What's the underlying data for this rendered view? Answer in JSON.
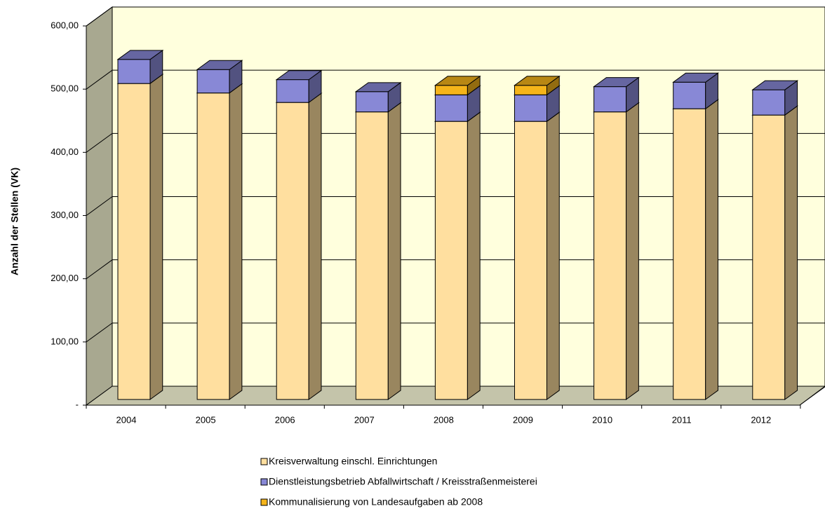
{
  "chart_data": {
    "type": "bar3d_stacked",
    "y_label": "Anzahl der Stellen (VK)",
    "categories": [
      "2004",
      "2005",
      "2006",
      "2007",
      "2008",
      "2009",
      "2010",
      "2011",
      "2012"
    ],
    "series": [
      {
        "name": "Kreisverwaltung einschl. Einrichtungen",
        "color": "#FFDF9F",
        "values": [
          500,
          485,
          470,
          455,
          440,
          440,
          455,
          460,
          450
        ]
      },
      {
        "name": "Dienstleistungsbetrieb Abfallwirtschaft / Kreisstraßenmeisterei",
        "color": "#8888D6",
        "values": [
          38,
          37,
          36,
          32,
          42,
          42,
          40,
          42,
          40
        ]
      },
      {
        "name": "Kommunalisierung von Landesaufgaben ab 2008",
        "color": "#F5B41A",
        "values": [
          null,
          null,
          null,
          null,
          15,
          15,
          null,
          null,
          null
        ]
      }
    ],
    "ylim": [
      0,
      600
    ],
    "yticks": [
      {
        "value": 0,
        "label": "-"
      },
      {
        "value": 100,
        "label": "100,00"
      },
      {
        "value": 200,
        "label": "200,00"
      },
      {
        "value": 300,
        "label": "300,00"
      },
      {
        "value": 400,
        "label": "400,00"
      },
      {
        "value": 500,
        "label": "500,00"
      },
      {
        "value": 600,
        "label": "600,00"
      }
    ],
    "grid": true
  }
}
